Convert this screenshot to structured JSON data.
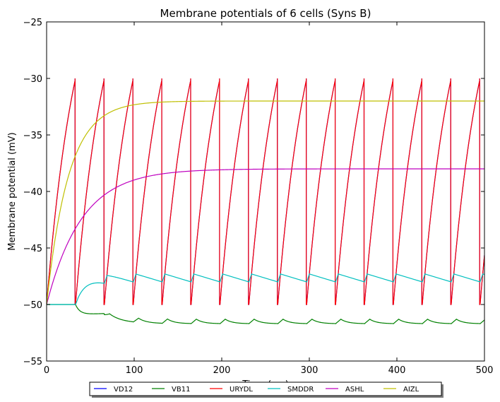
{
  "chart_data": {
    "type": "line",
    "title": "Membrane potentials of 6 cells (Syns B)",
    "xlabel": "Time (ms)",
    "ylabel": "Membrane potential (mV)",
    "xlim": [
      0,
      500
    ],
    "ylim": [
      -55,
      -25
    ],
    "xticks": [
      "0",
      "100",
      "200",
      "300",
      "400",
      "500"
    ],
    "yticks": [
      "−55",
      "−50",
      "−45",
      "−40",
      "−35",
      "−30",
      "−25"
    ],
    "grid": false,
    "legend_position": "bottom-center",
    "series": [
      {
        "name": "VD12",
        "color": "#0000ff",
        "description_values": {
          "rest": -50,
          "spike_threshold": -30,
          "reset": -50,
          "spike_period_ms": 33
        }
      },
      {
        "name": "VB11",
        "color": "#008000",
        "values_summary": {
          "start": -50,
          "t33_to_t66": -50.9,
          "oscillation_low": -51.6,
          "oscillation_high": -51.0
        }
      },
      {
        "name": "URYDL",
        "color": "#ff0000",
        "description_values": {
          "rest": -50,
          "spike_threshold": -30,
          "reset": -50,
          "spike_period_ms": 33
        }
      },
      {
        "name": "SMDDR",
        "color": "#00bfbf",
        "values_summary": {
          "start": -50,
          "oscillation_low": -48.0,
          "oscillation_high": -47.3
        }
      },
      {
        "name": "ASHL",
        "color": "#bf00bf",
        "values_summary": {
          "start": -50,
          "asymptote": -38,
          "tau_ms": 40
        }
      },
      {
        "name": "AIZL",
        "color": "#bfbf00",
        "values_summary": {
          "start": -50,
          "asymptote": -32,
          "tau_ms": 25
        }
      }
    ]
  }
}
